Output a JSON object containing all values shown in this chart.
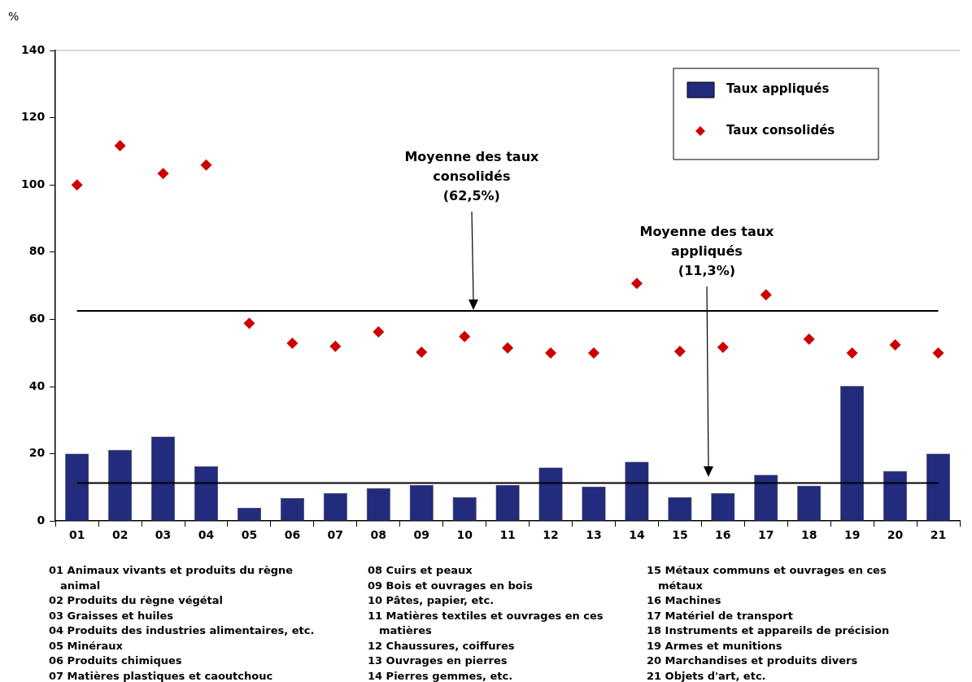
{
  "chart_data": {
    "type": "bar",
    "ylabel": "%",
    "categories": [
      "01",
      "02",
      "03",
      "04",
      "05",
      "06",
      "07",
      "08",
      "09",
      "10",
      "11",
      "12",
      "13",
      "14",
      "15",
      "16",
      "17",
      "18",
      "19",
      "20",
      "21"
    ],
    "series": [
      {
        "name": "Taux appliqués",
        "color": "#222b7c",
        "values": [
          20,
          21.2,
          25.1,
          16.3,
          3.9,
          6.8,
          8.3,
          9.8,
          10.7,
          7.1,
          10.7,
          15.9,
          10.2,
          17.6,
          7.1,
          8.3,
          13.7,
          10.5,
          40.2,
          14.9,
          20
        ]
      },
      {
        "name": "Taux consolidés",
        "type": "scatter",
        "color": "#cc0000",
        "values": [
          100,
          111.7,
          103.4,
          105.9,
          58.8,
          52.9,
          52,
          56.3,
          50.2,
          54.9,
          51.5,
          50,
          50,
          70.7,
          50.5,
          51.7,
          67.3,
          54.1,
          50,
          52.4,
          50
        ]
      }
    ],
    "ylim": [
      0,
      140
    ],
    "yticks": [
      0,
      20,
      40,
      60,
      80,
      100,
      120,
      140
    ],
    "grid": false,
    "legend": "top right",
    "marker": "diamond",
    "ref_lines": [
      {
        "axis": "y",
        "value": 62.5,
        "color": "#000000"
      },
      {
        "axis": "y",
        "value": 11.3,
        "color": "#000000"
      }
    ],
    "annotations": [
      "Moyenne des taux\nconsolidés\n(62,5%)",
      "Moyenne des taux\nappliqués\n(11,3%)",
      "01 Animaux vivants et produits du règne animal",
      "02 Produits du règne végétal",
      "03 Graisses et huiles",
      "04 Produits des industries alimentaires, etc.",
      "05 Minéraux",
      "06 Produits chimiques",
      "07 Matières plastiques et caoutchouc",
      "08 Cuirs et peaux",
      "09 Bois et ouvrages en bois",
      "10 Pâtes, papier, etc.",
      "11 Matières textiles et ouvrages en ces matières",
      "12 Chaussures, coiffures",
      "13 Ouvrages en pierres",
      "14 Pierres gemmes, etc.",
      "15 Métaux communs et ouvrages en ces métaux",
      "16 Machines",
      "17 Matériel de transport",
      "18 Instruments et appareils de précision",
      "19 Armes et munitions",
      "20 Marchandises et produits divers",
      "21 Objets d'art, etc."
    ]
  }
}
